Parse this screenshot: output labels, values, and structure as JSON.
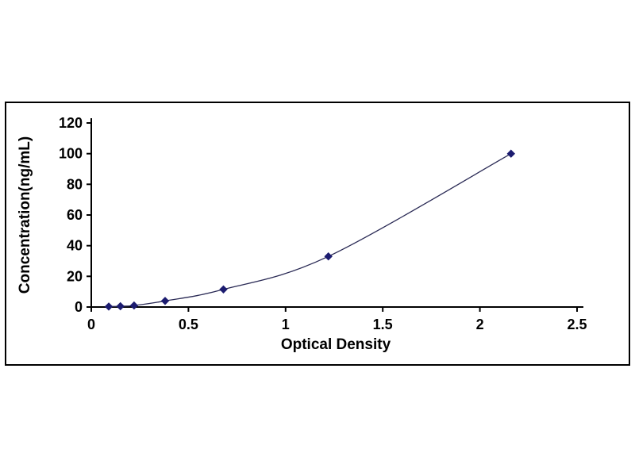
{
  "chart_data": {
    "type": "line",
    "title": "",
    "xlabel": "Optical Density",
    "ylabel": "Concentration(ng/mL)",
    "xlim": [
      0,
      2.5
    ],
    "ylim": [
      0,
      120
    ],
    "x_ticks": [
      0,
      0.5,
      1,
      1.5,
      2,
      2.5
    ],
    "x_tick_labels": [
      "0",
      "0.5",
      "1",
      "1.5",
      "2",
      "2.5"
    ],
    "y_ticks": [
      0,
      20,
      40,
      60,
      80,
      100,
      120
    ],
    "y_tick_labels": [
      "0",
      "20",
      "40",
      "60",
      "80",
      "100",
      "120"
    ],
    "grid": "off",
    "legend": "none",
    "marker": "diamond",
    "marker_color": "#1c1c70",
    "line_color": "#2a2a55",
    "axis_color": "#000000",
    "points": [
      {
        "x": 0.09,
        "y": 0.3
      },
      {
        "x": 0.15,
        "y": 0.5
      },
      {
        "x": 0.22,
        "y": 1.0
      },
      {
        "x": 0.38,
        "y": 4.0
      },
      {
        "x": 0.68,
        "y": 11.5
      },
      {
        "x": 1.22,
        "y": 33.0
      },
      {
        "x": 2.16,
        "y": 100.0
      }
    ]
  }
}
